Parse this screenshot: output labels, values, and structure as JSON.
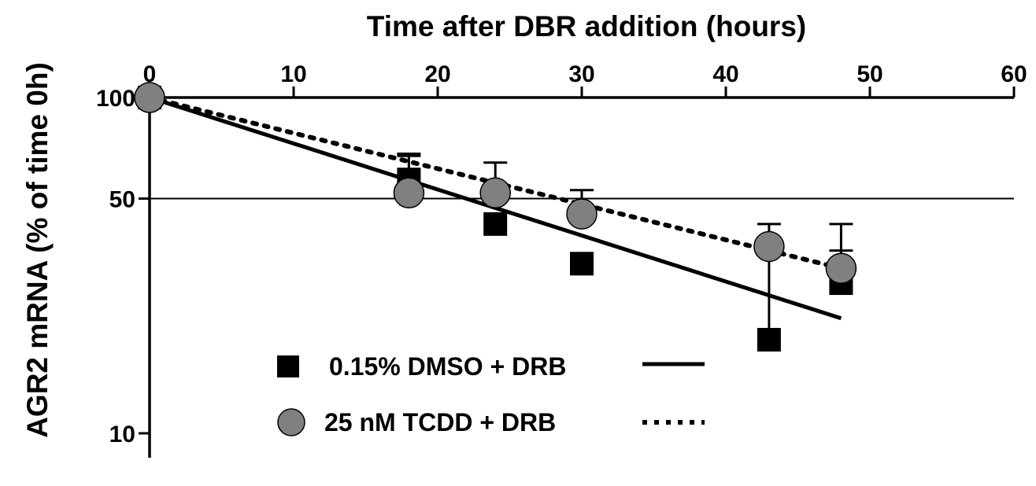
{
  "chart_data": {
    "type": "scatter",
    "title": "Time after DBR addition (hours)",
    "xlabel": "Time after DBR addition (hours)",
    "ylabel": "AGR2 mRNA (% of time 0h)",
    "x_axis_position": "top",
    "y_scale": "log",
    "xlim": [
      0,
      60
    ],
    "ylim": [
      10,
      100
    ],
    "x_ticks": [
      0,
      10,
      20,
      30,
      40,
      50,
      60
    ],
    "y_ticks": [
      10,
      50,
      100
    ],
    "gridlines_y": [
      50
    ],
    "legend_position": "bottom-center",
    "series": [
      {
        "name": "0.15% DMSO + DRB",
        "marker": "square",
        "color": "#000000",
        "line_style": "solid",
        "x": [
          0,
          18,
          24,
          30,
          43,
          48
        ],
        "y": [
          100,
          57,
          42,
          32,
          19,
          28
        ],
        "error_upper": [
          null,
          68,
          null,
          null,
          38,
          35
        ],
        "fit": {
          "x": [
            0,
            48
          ],
          "y": [
            100,
            22
          ]
        }
      },
      {
        "name": "25 nM TCDD + DRB",
        "marker": "circle",
        "color": "#808080",
        "line_style": "dotted",
        "x": [
          0,
          18,
          24,
          30,
          43,
          48
        ],
        "y": [
          100,
          52,
          52,
          45,
          36,
          31
        ],
        "error_upper": [
          null,
          67,
          64,
          53,
          42,
          42
        ],
        "fit": {
          "x": [
            0,
            48
          ],
          "y": [
            100,
            31
          ]
        }
      }
    ]
  }
}
